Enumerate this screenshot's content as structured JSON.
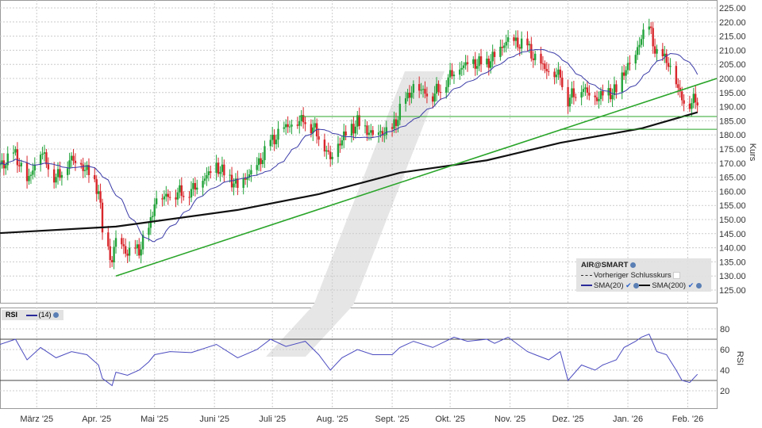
{
  "chart_data": {
    "type": "candlestick",
    "instrument": "AIR@SMART",
    "price_axis": {
      "label": "Kurs",
      "range": [
        120,
        227
      ],
      "ticks": [
        "125.00",
        "130.00",
        "135.00",
        "140.00",
        "145.00",
        "150.00",
        "155.00",
        "160.00",
        "165.00",
        "170.00",
        "175.00",
        "180.00",
        "185.00",
        "190.00",
        "195.00",
        "200.00",
        "205.00",
        "210.00",
        "215.00",
        "220.00",
        "225.00"
      ]
    },
    "x_axis": {
      "range": [
        "2025-02-10",
        "2026-02-16"
      ],
      "ticks": [
        {
          "date": "2025-03-01",
          "label": "März '25"
        },
        {
          "date": "2025-04-01",
          "label": "Apr. '25"
        },
        {
          "date": "2025-05-01",
          "label": "Mai '25"
        },
        {
          "date": "2025-06-01",
          "label": "Juni '25"
        },
        {
          "date": "2025-07-01",
          "label": "Juli '25"
        },
        {
          "date": "2025-08-01",
          "label": "Aug. '25"
        },
        {
          "date": "2025-09-01",
          "label": "Sept. '25"
        },
        {
          "date": "2025-10-01",
          "label": "Okt. '25"
        },
        {
          "date": "2025-11-01",
          "label": "Nov. '25"
        },
        {
          "date": "2025-12-01",
          "label": "Dez. '25"
        },
        {
          "date": "2026-01-01",
          "label": "Jan. '26"
        },
        {
          "date": "2026-02-01",
          "label": "Feb. '26"
        }
      ]
    },
    "grid": true,
    "close": [
      [
        "2025-02-10",
        168.8
      ],
      [
        "2025-02-18",
        173
      ],
      [
        "2025-02-24",
        163
      ],
      [
        "2025-03-03",
        174.4
      ],
      [
        "2025-03-11",
        164.6
      ],
      [
        "2025-03-19",
        171.6
      ],
      [
        "2025-03-27",
        167.4
      ],
      [
        "2025-04-02",
        160.4
      ],
      [
        "2025-04-04",
        146.3
      ],
      [
        "2025-04-09",
        135
      ],
      [
        "2025-04-11",
        143.5
      ],
      [
        "2025-04-17",
        138
      ],
      [
        "2025-04-23",
        139.3
      ],
      [
        "2025-04-28",
        146
      ],
      [
        "2025-05-01",
        156
      ],
      [
        "2025-05-09",
        159
      ],
      [
        "2025-05-20",
        160.4
      ],
      [
        "2025-06-02",
        168.8
      ],
      [
        "2025-06-13",
        161.8
      ],
      [
        "2025-06-23",
        168.8
      ],
      [
        "2025-06-30",
        177.2
      ],
      [
        "2025-07-08",
        182.9
      ],
      [
        "2025-07-18",
        185.7
      ],
      [
        "2025-07-25",
        180
      ],
      [
        "2025-07-31",
        171.6
      ],
      [
        "2025-08-06",
        178.6
      ],
      [
        "2025-08-14",
        184.3
      ],
      [
        "2025-08-22",
        180
      ],
      [
        "2025-09-01",
        181.5
      ],
      [
        "2025-09-05",
        188.5
      ],
      [
        "2025-09-12",
        196.9
      ],
      [
        "2025-09-22",
        194
      ],
      [
        "2025-10-03",
        202.5
      ],
      [
        "2025-10-10",
        205.3
      ],
      [
        "2025-10-20",
        205.3
      ],
      [
        "2025-10-24",
        208
      ],
      [
        "2025-10-31",
        213.8
      ],
      [
        "2025-11-10",
        211
      ],
      [
        "2025-11-14",
        206.7
      ],
      [
        "2025-11-21",
        202.5
      ],
      [
        "2025-11-27",
        201
      ],
      [
        "2025-12-01",
        192.7
      ],
      [
        "2025-12-08",
        196.9
      ],
      [
        "2025-12-15",
        192.7
      ],
      [
        "2025-12-19",
        194
      ],
      [
        "2025-12-26",
        195.5
      ],
      [
        "2025-12-30",
        202.5
      ],
      [
        "2026-01-05",
        208
      ],
      [
        "2026-01-08",
        215
      ],
      [
        "2026-01-12",
        218
      ],
      [
        "2026-01-16",
        208
      ],
      [
        "2026-01-21",
        206.7
      ],
      [
        "2026-01-26",
        198.3
      ],
      [
        "2026-01-29",
        192.7
      ],
      [
        "2026-02-02",
        191.3
      ],
      [
        "2026-02-06",
        192.7
      ]
    ],
    "sma200": [
      [
        "2025-02-10",
        145.2
      ],
      [
        "2025-04-11",
        147.5
      ],
      [
        "2025-06-13",
        153.4
      ],
      [
        "2025-07-25",
        159
      ],
      [
        "2025-09-05",
        166.6
      ],
      [
        "2025-10-20",
        171
      ],
      [
        "2025-11-27",
        177.2
      ],
      [
        "2026-01-08",
        182.3
      ],
      [
        "2026-02-06",
        188
      ]
    ],
    "trendline": {
      "from": [
        "2025-04-11",
        130
      ],
      "to": [
        "2026-02-16",
        200
      ]
    },
    "horizontal_lines": [
      {
        "value": 186.5,
        "from": "2025-07-15"
      },
      {
        "value": 182,
        "from": "2025-11-27"
      }
    ],
    "colors": {
      "up": "#22a33a",
      "down": "#d8262b",
      "sma20": "#3a3aa8",
      "sma200": "#111111",
      "lines": "#2aa52a",
      "rsi": "#4b4bc0"
    },
    "legend": {
      "title": "AIR@SMART",
      "prev_close": "Vorheriger Schlusskurs",
      "sma20": "SMA(20)",
      "sma200": "SMA(200)",
      "placement": "bottom-right"
    },
    "rsi": {
      "label": "RSI",
      "period_label": "(14)",
      "axis_label": "RSI",
      "ticks": [
        "20",
        "40",
        "60",
        "80"
      ],
      "levels": [
        30,
        70
      ],
      "range": [
        10,
        90
      ],
      "values": [
        65,
        70,
        50,
        62,
        52,
        58,
        55,
        45,
        32,
        25,
        38,
        35,
        40,
        48,
        55,
        58,
        57,
        65,
        52,
        60,
        70,
        63,
        68,
        55,
        40,
        52,
        60,
        55,
        55,
        62,
        68,
        62,
        72,
        68,
        70,
        66,
        72,
        58,
        55,
        50,
        58,
        30,
        45,
        40,
        45,
        50,
        62,
        68,
        72,
        75,
        58,
        55,
        40,
        30,
        28,
        36
      ]
    }
  }
}
